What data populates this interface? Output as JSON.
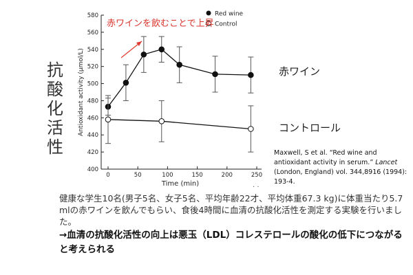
{
  "slide": {
    "vertical_title_chars": [
      "抗",
      "酸",
      "化",
      "活",
      "性"
    ],
    "label_red": "赤ワイン",
    "label_control": "コントロール",
    "annotation_red": "赤ワインを飲むことで上昇",
    "citation": {
      "authors": "Maxwell, S et al. “Red wine and antioxidant activity in serum.”",
      "journal": "Lancet",
      "rest": "(London, England) vol. 344,8916 (1994): 193-4."
    },
    "description": "健康な学生10名(男子5名、女子5名、平均年齢22才、平均体重67.3 kg)に体重当たり5.7 mlの赤ワインを飲んでもらい、食後4時間に血清の抗酸化活性を測定する実験を行いました。",
    "conclusion": "→血清の抗酸化活性の向上は悪玉（LDL）コレステロールの酸化の低下につながると考えられる",
    "dots": "· ·"
  },
  "chart_data": {
    "type": "line",
    "xlabel": "Time (min)",
    "ylabel": "Antioxidant activity (μmol/L)",
    "xlim": [
      0,
      250
    ],
    "ylim": [
      400,
      580
    ],
    "xticks": [
      0,
      50,
      100,
      150,
      200,
      250
    ],
    "yticks": [
      400,
      420,
      440,
      460,
      480,
      500,
      520,
      540,
      560,
      580
    ],
    "legend_position": "top-right",
    "series": [
      {
        "name": "Red wine",
        "marker": "filled-circle",
        "points": [
          {
            "x": 0,
            "y": 473,
            "err": 10
          },
          {
            "x": 30,
            "y": 501,
            "err": 21
          },
          {
            "x": 60,
            "y": 534,
            "err": 21
          },
          {
            "x": 90,
            "y": 540,
            "err": 15
          },
          {
            "x": 120,
            "y": 522,
            "err": 21
          },
          {
            "x": 180,
            "y": 511,
            "err": 21
          },
          {
            "x": 240,
            "y": 510,
            "err": 21
          }
        ]
      },
      {
        "name": "Control",
        "marker": "open-circle",
        "points": [
          {
            "x": 0,
            "y": 458,
            "err": 28
          },
          {
            "x": 90,
            "y": 456,
            "err": 24
          },
          {
            "x": 240,
            "y": 447,
            "err": 27
          }
        ]
      }
    ]
  }
}
